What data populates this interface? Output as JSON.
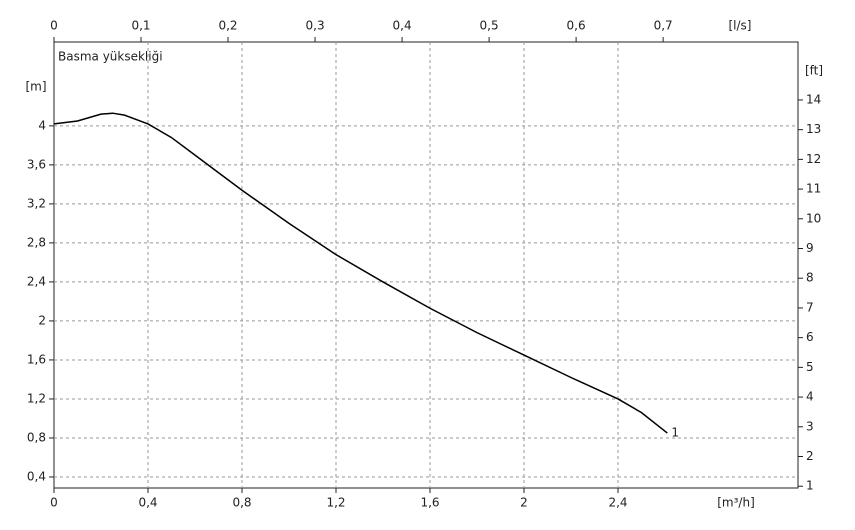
{
  "chart_data": {
    "type": "line",
    "title": "Basma yüksekliği",
    "x_label": "[m³/h]",
    "x2_label": "[l/s]",
    "y_label": "[m]",
    "y2_label": "[ft]",
    "x": [
      0,
      0.1,
      0.2,
      0.25,
      0.3,
      0.4,
      0.5,
      0.6,
      0.8,
      1.0,
      1.2,
      1.4,
      1.6,
      1.8,
      2.0,
      2.2,
      2.4,
      2.5,
      2.61
    ],
    "series": [
      {
        "name": "1",
        "color": "#000000",
        "values": [
          4.02,
          4.05,
          4.12,
          4.13,
          4.11,
          4.02,
          3.88,
          3.7,
          3.34,
          3.0,
          2.68,
          2.4,
          2.13,
          1.88,
          1.65,
          1.42,
          1.2,
          1.06,
          0.85
        ]
      }
    ],
    "xlim": [
      0,
      3.166
    ],
    "xticks": [
      0,
      {
        "value": 0.4,
        "label": "0,4"
      },
      {
        "value": 0.8,
        "label": "0,8"
      },
      {
        "value": 1.2,
        "label": "1,2"
      },
      {
        "value": 1.6,
        "label": "1,6"
      },
      2,
      {
        "value": 2.4,
        "label": "2,4"
      }
    ],
    "x2lim": [
      0,
      0.855
    ],
    "x2ticks": [
      0,
      {
        "value": 0.1,
        "label": "0,1"
      },
      {
        "value": 0.2,
        "label": "0,2"
      },
      {
        "value": 0.3,
        "label": "0,3"
      },
      {
        "value": 0.4,
        "label": "0,4"
      },
      {
        "value": 0.5,
        "label": "0,5"
      },
      {
        "value": 0.6,
        "label": "0,6"
      },
      {
        "value": 0.7,
        "label": "0,7"
      }
    ],
    "ylim": [
      0.287,
      4.86
    ],
    "yticks": [
      {
        "value": 0.4,
        "label": "0,4"
      },
      {
        "value": 0.8,
        "label": "0,8"
      },
      {
        "value": 1.2,
        "label": "1,2"
      },
      {
        "value": 1.6,
        "label": "1,6"
      },
      2,
      {
        "value": 2.4,
        "label": "2,4"
      },
      {
        "value": 2.8,
        "label": "2,8"
      },
      {
        "value": 3.2,
        "label": "3,2"
      },
      {
        "value": 3.6,
        "label": "3,6"
      },
      4
    ],
    "y2lim": [
      0.94,
      15.95
    ],
    "y2ticks": [
      1,
      2,
      3,
      4,
      5,
      6,
      7,
      8,
      9,
      10,
      11,
      12,
      13,
      14
    ],
    "grid": true
  }
}
